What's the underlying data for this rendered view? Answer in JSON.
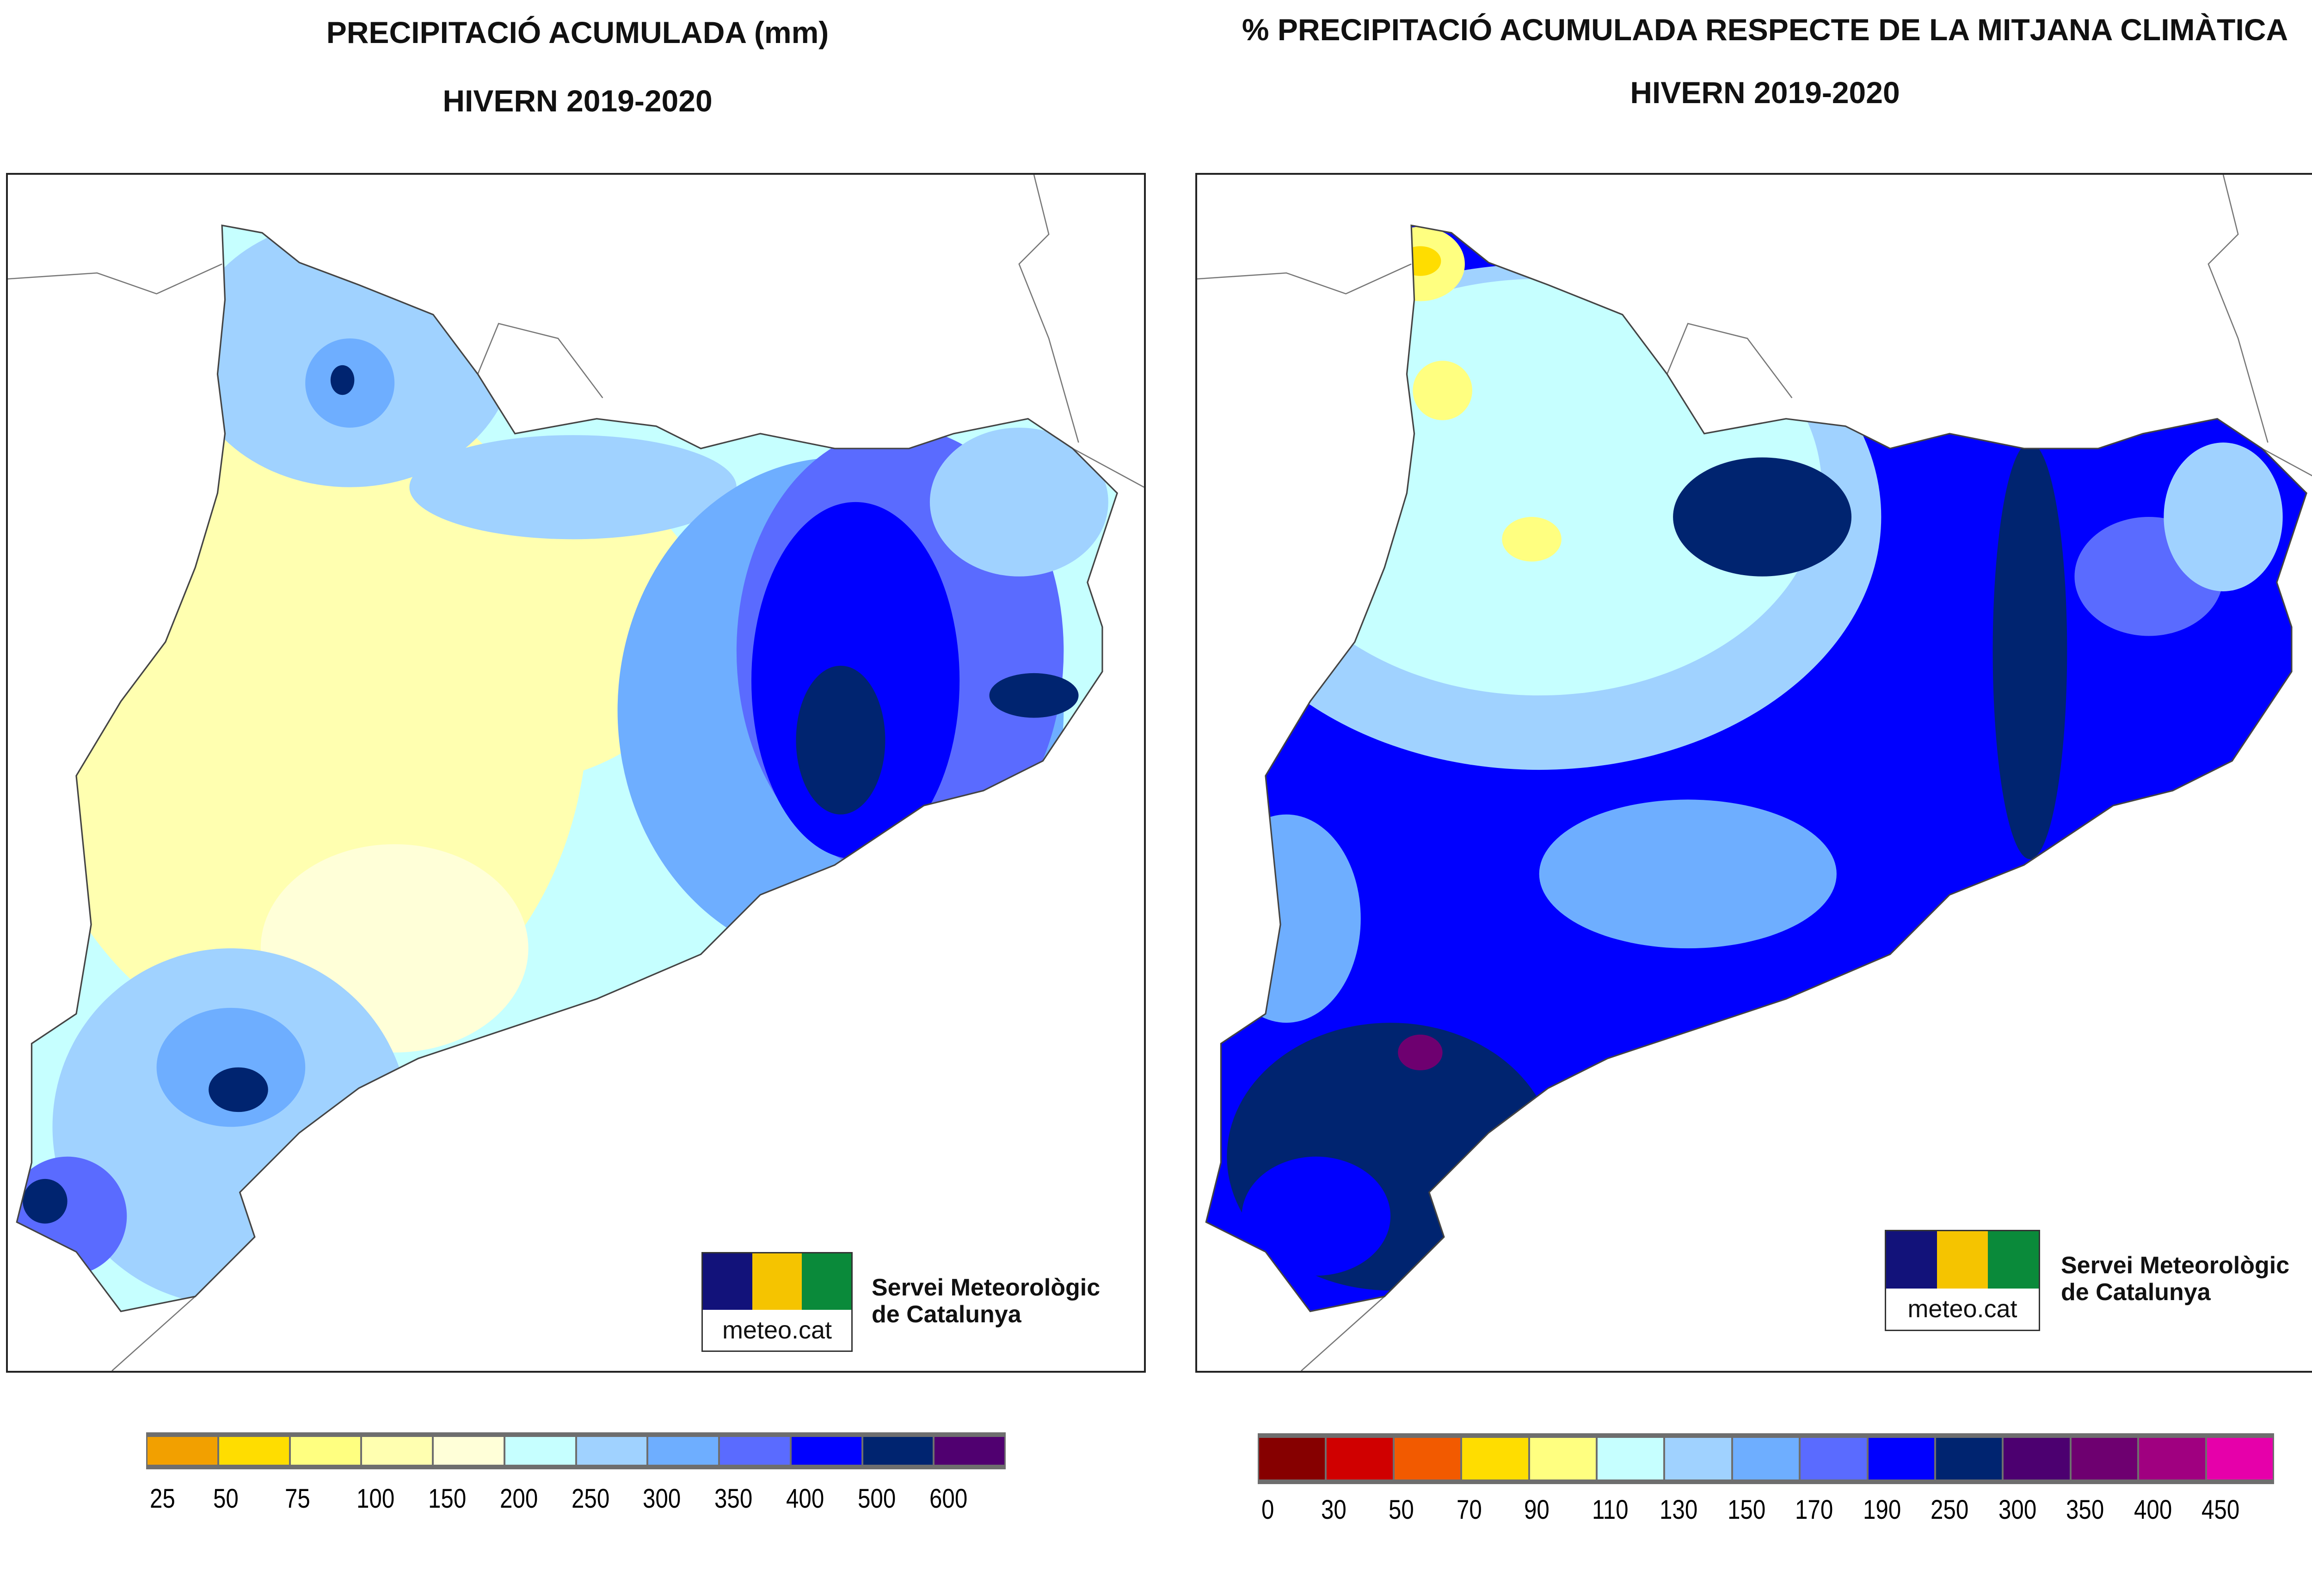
{
  "left": {
    "title_line1": "PRECIPITACIÓ ACUMULADA (mm)",
    "title_line2": "HIVERN 2019-2020",
    "legend": {
      "labels": [
        "25",
        "50",
        "75",
        "100",
        "150",
        "200",
        "250",
        "300",
        "350",
        "400",
        "500",
        "600"
      ],
      "colors": [
        "#f2a000",
        "#ffdd00",
        "#ffff80",
        "#ffffb0",
        "#ffffd8",
        "#c6ffff",
        "#a0d2ff",
        "#6eaeff",
        "#5a6bff",
        "#0000ff",
        "#002470",
        "#500070"
      ]
    },
    "logo": {
      "brand": "meteo.cat",
      "org_line1": "Servei Meteorològic",
      "org_line2": "de Catalunya"
    }
  },
  "right": {
    "title_line1": "% PRECIPITACIÓ ACUMULADA RESPECTE DE LA MITJANA CLIMÀTICA",
    "title_line2": "HIVERN 2019-2020",
    "legend": {
      "labels": [
        "0",
        "30",
        "50",
        "70",
        "90",
        "110",
        "130",
        "150",
        "170",
        "190",
        "250",
        "300",
        "350",
        "400",
        "450"
      ],
      "colors": [
        "#860000",
        "#d00000",
        "#f25a00",
        "#ffdd00",
        "#ffff80",
        "#c6ffff",
        "#a0d2ff",
        "#6eaeff",
        "#5a6bff",
        "#0000ff",
        "#002470",
        "#4c0070",
        "#6e0070",
        "#a00080",
        "#e600aa"
      ]
    },
    "logo": {
      "brand": "meteo.cat",
      "org_line1": "Servei Meteorològic",
      "org_line2": "de Catalunya"
    }
  },
  "chart_data": [
    {
      "type": "heatmap",
      "title": "PRECIPITACIÓ ACUMULADA (mm) HIVERN 2019-2020",
      "unit": "mm",
      "bins": [
        "25",
        "50",
        "75",
        "100",
        "150",
        "200",
        "250",
        "300",
        "350",
        "400",
        "500",
        "600"
      ]
    },
    {
      "type": "heatmap",
      "title": "% PRECIPITACIÓ ACUMULADA RESPECTE DE LA MITJANA CLIMÀTICA HIVERN 2019-2020",
      "unit": "%",
      "bins": [
        "0",
        "30",
        "50",
        "70",
        "90",
        "110",
        "130",
        "150",
        "170",
        "190",
        "250",
        "300",
        "350",
        "400",
        "450"
      ]
    }
  ]
}
